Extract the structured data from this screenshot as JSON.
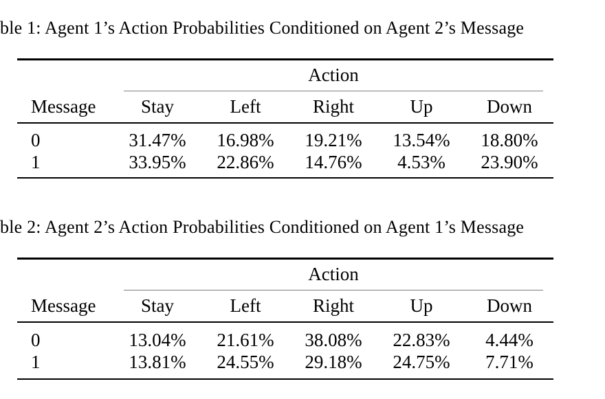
{
  "page": {
    "background_color": "#ffffff",
    "text_color": "#000000",
    "rule_color": "#000000",
    "cmidrule_color": "#7d7d7d"
  },
  "tables": [
    {
      "caption": "ble 1: Agent 1’s Action Probabilities Conditioned on Agent 2’s Message",
      "group_header": "Action",
      "columns": [
        "Message",
        "Stay",
        "Left",
        "Right",
        "Up",
        "Down"
      ],
      "rows": [
        {
          "message": "0",
          "values": [
            "31.47%",
            "16.98%",
            "19.21%",
            "13.54%",
            "18.80%"
          ]
        },
        {
          "message": "1",
          "values": [
            "33.95%",
            "22.86%",
            "14.76%",
            "4.53%",
            "23.90%"
          ]
        }
      ]
    },
    {
      "caption": "ble 2: Agent 2’s Action Probabilities Conditioned on Agent 1’s Message",
      "group_header": "Action",
      "columns": [
        "Message",
        "Stay",
        "Left",
        "Right",
        "Up",
        "Down"
      ],
      "rows": [
        {
          "message": "0",
          "values": [
            "13.04%",
            "21.61%",
            "38.08%",
            "22.83%",
            "4.44%"
          ]
        },
        {
          "message": "1",
          "values": [
            "13.81%",
            "24.55%",
            "29.18%",
            "24.75%",
            "7.71%"
          ]
        }
      ]
    }
  ]
}
